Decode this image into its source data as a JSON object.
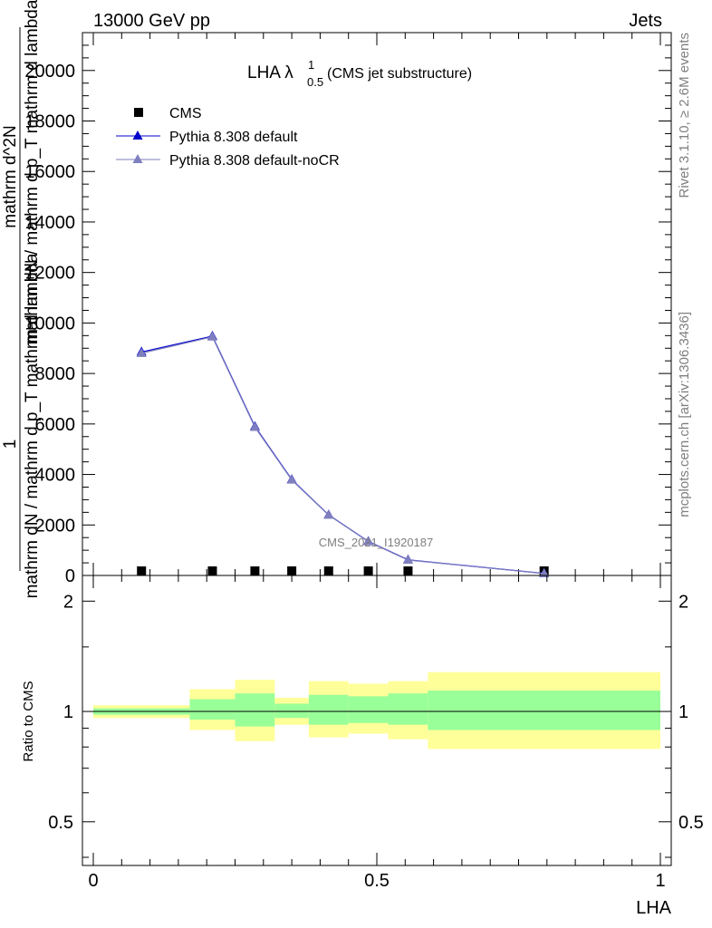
{
  "header": {
    "left": "13000 GeV pp",
    "right": "Jets"
  },
  "side_labels": {
    "rivet": "Rivet 3.1.10, ≥ 2.6M events",
    "mcplots": "mcplots.cern.ch [arXiv:1306.3436]"
  },
  "watermark": "CMS_2021_I1920187",
  "chart_data": [
    {
      "type": "line",
      "title_main": "LHA λ",
      "title_sup": "1",
      "title_sub": "0.5",
      "title_rest": " (CMS jet substructure)",
      "ylabel_top": "1",
      "ylabel_num": "mathrm dN / mathrm d p_T mathrm d lambda",
      "ylabel_den": "mathrm dN / mathrm d p_T mathrm d lambda",
      "ylabel_frac_den": "mathrm d^2N",
      "ylim": [
        0,
        21500
      ],
      "yticks": [
        0,
        2000,
        4000,
        6000,
        8000,
        10000,
        12000,
        14000,
        16000,
        18000,
        20000
      ],
      "ytick_labels": [
        "0",
        "2000",
        "4000",
        "6000",
        "8000",
        "10000",
        "12000",
        "14000",
        "16000",
        "18000",
        "20000"
      ],
      "xlim": [
        0,
        1
      ],
      "legend_placement": "top-left",
      "series": [
        {
          "name": "CMS",
          "marker": "square",
          "color": "#000000",
          "x": [
            0.085,
            0.21,
            0.285,
            0.35,
            0.415,
            0.485,
            0.555,
            0.795
          ],
          "values": [
            8,
            8,
            8,
            8,
            8,
            8,
            8,
            8
          ]
        },
        {
          "name": "Pythia 8.308 default",
          "marker": "triangle",
          "color": "#0000cc",
          "x": [
            0.085,
            0.21,
            0.285,
            0.35,
            0.415,
            0.485,
            0.555,
            0.795
          ],
          "values": [
            8850,
            9480,
            5900,
            3800,
            2400,
            1350,
            620,
            80
          ]
        },
        {
          "name": "Pythia 8.308 default-noCR",
          "marker": "triangle",
          "color": "#7f7fbf",
          "x": [
            0.085,
            0.21,
            0.285,
            0.35,
            0.415,
            0.485,
            0.555,
            0.795
          ],
          "values": [
            8800,
            9450,
            5870,
            3780,
            2390,
            1340,
            610,
            78
          ]
        }
      ]
    },
    {
      "type": "area",
      "ylabel": "Ratio to CMS",
      "xlabel": "LHA",
      "log_y": true,
      "ylim": [
        0.38,
        2.35
      ],
      "yticks": [
        0.5,
        1,
        2
      ],
      "ytick_labels": [
        "0.5",
        "1",
        "2"
      ],
      "xlim": [
        0,
        1
      ],
      "xticks": [
        0,
        0.5,
        1
      ],
      "xtick_labels": [
        "0",
        "0.5",
        "1"
      ],
      "bands_x_edges": [
        0.0,
        0.17,
        0.25,
        0.32,
        0.38,
        0.45,
        0.52,
        0.59,
        1.0
      ],
      "band_yellow_lo": [
        0.96,
        0.89,
        0.83,
        0.92,
        0.85,
        0.87,
        0.84,
        0.79
      ],
      "band_yellow_hi": [
        1.04,
        1.15,
        1.22,
        1.09,
        1.21,
        1.19,
        1.21,
        1.28
      ],
      "band_green_lo": [
        0.98,
        0.95,
        0.91,
        0.96,
        0.92,
        0.93,
        0.92,
        0.89
      ],
      "band_green_hi": [
        1.02,
        1.08,
        1.12,
        1.05,
        1.11,
        1.1,
        1.12,
        1.14
      ],
      "colors": {
        "yellow": "#ffff99",
        "green": "#99ff99"
      },
      "reference_value": 1
    }
  ]
}
